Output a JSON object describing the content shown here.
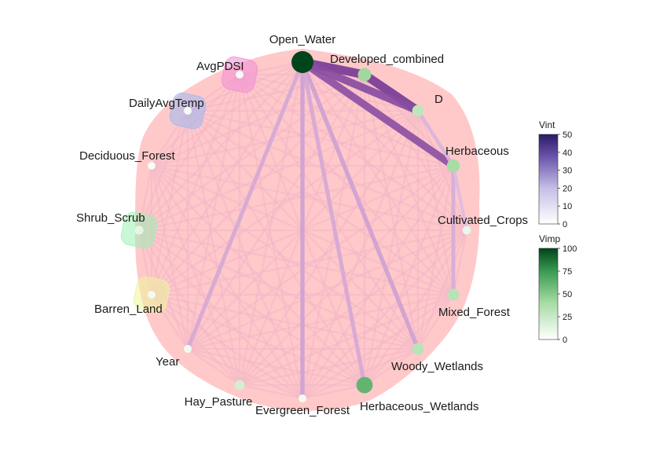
{
  "chart_data": {
    "type": "network",
    "nodes": [
      {
        "id": "Open_Water",
        "vimp": 100
      },
      {
        "id": "Developed_combined",
        "vimp": 42
      },
      {
        "id": "D",
        "vimp": 30
      },
      {
        "id": "Herbaceous",
        "vimp": 40
      },
      {
        "id": "Cultivated_Crops",
        "vimp": 10
      },
      {
        "id": "Mixed_Forest",
        "vimp": 32
      },
      {
        "id": "Woody_Wetlands",
        "vimp": 32
      },
      {
        "id": "Herbaceous_Wetlands",
        "vimp": 62
      },
      {
        "id": "Evergreen_Forest",
        "vimp": 6
      },
      {
        "id": "Hay_Pasture",
        "vimp": 20
      },
      {
        "id": "Year",
        "vimp": 6
      },
      {
        "id": "Barren_Land",
        "vimp": 5
      },
      {
        "id": "Shrub_Scrub",
        "vimp": 12
      },
      {
        "id": "Deciduous_Forest",
        "vimp": 4
      },
      {
        "id": "DailyAvgTemp",
        "vimp": 5
      },
      {
        "id": "AvgPDSI",
        "vimp": 5
      }
    ],
    "edges": [
      {
        "from": "Open_Water",
        "to": "Developed_combined",
        "vint": 50
      },
      {
        "from": "Developed_combined",
        "to": "D",
        "vint": 50
      },
      {
        "from": "Open_Water",
        "to": "D",
        "vint": 42
      },
      {
        "from": "Open_Water",
        "to": "Herbaceous",
        "vint": 40
      },
      {
        "from": "Open_Water",
        "to": "Evergreen_Forest",
        "vint": 15
      },
      {
        "from": "Open_Water",
        "to": "Woody_Wetlands",
        "vint": 15
      },
      {
        "from": "Open_Water",
        "to": "Year",
        "vint": 13
      },
      {
        "from": "Open_Water",
        "to": "Herbaceous_Wetlands",
        "vint": 13
      },
      {
        "from": "Herbaceous",
        "to": "Mixed_Forest",
        "vint": 12
      },
      {
        "from": "D",
        "to": "Herbaceous",
        "vint": 10
      },
      {
        "from": "Herbaceous",
        "to": "Cultivated_Crops",
        "vint": 8
      }
    ],
    "groups": [
      {
        "members": [
          "AvgPDSI"
        ],
        "color": "#f28cd6"
      },
      {
        "members": [
          "DailyAvgTemp"
        ],
        "color": "#9db8f2"
      },
      {
        "members": [
          "Shrub_Scrub"
        ],
        "color": "#9ef0b5"
      },
      {
        "members": [
          "Barren_Land"
        ],
        "color": "#ecf59a"
      }
    ],
    "background_group_color": "#ffc9c9",
    "legends": [
      {
        "title": "Vint",
        "min": 0,
        "max": 50,
        "ticks": [
          0,
          10,
          20,
          30,
          40,
          50
        ],
        "low_color": "#ffffff",
        "high_color": "#2c1a66"
      },
      {
        "title": "Vimp",
        "min": 0,
        "max": 100,
        "ticks": [
          0,
          25,
          50,
          75,
          100
        ],
        "low_color": "#ffffff",
        "high_color": "#00441b"
      }
    ]
  }
}
